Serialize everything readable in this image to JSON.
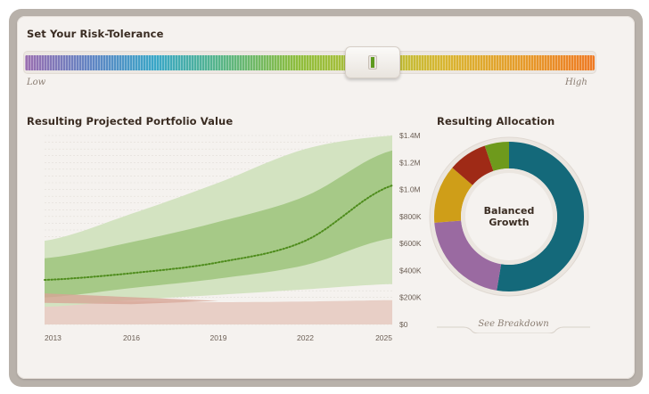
{
  "risk": {
    "title": "Set Your Risk-Tolerance",
    "low_label": "Low",
    "high_label": "High",
    "slider_value_fraction": 0.61
  },
  "projection": {
    "title": "Resulting Projected Portfolio Value"
  },
  "allocation": {
    "title": "Resulting Allocation",
    "center_line1": "Balanced",
    "center_line2": "Growth",
    "breakdown_link": "See Breakdown"
  },
  "chart_data": [
    {
      "type": "area",
      "title": "Resulting Projected Portfolio Value",
      "x_ticks": [
        "2013",
        "2016",
        "2019",
        "2022",
        "2025"
      ],
      "y_ticks": [
        "$0",
        "$200K",
        "$400K",
        "$600K",
        "$800K",
        "$1.0M",
        "$1.2M",
        "$1.4M"
      ],
      "xlim": [
        2013,
        2025
      ],
      "ylim": [
        0,
        1400000
      ],
      "grid": true,
      "series": [
        {
          "x": [
            2013,
            2016,
            2019,
            2022,
            2025
          ],
          "y": [
            330000,
            380000,
            460000,
            620000,
            1030000
          ]
        },
        {
          "x": [
            2013,
            2016,
            2019,
            2022,
            2025
          ],
          "lower": [
            200000,
            270000,
            340000,
            440000,
            640000
          ],
          "upper": [
            490000,
            610000,
            760000,
            950000,
            1290000
          ]
        },
        {
          "x": [
            2013,
            2016,
            2019,
            2022,
            2025
          ],
          "lower": [
            130000,
            180000,
            220000,
            260000,
            300000
          ],
          "upper": [
            620000,
            820000,
            1050000,
            1300000,
            1400000
          ]
        },
        {
          "x": [
            2013,
            2016,
            2019,
            2022,
            2025
          ],
          "lower": [
            0,
            0,
            0,
            0,
            0
          ],
          "upper": [
            180000,
            170000,
            165000,
            170000,
            180000
          ]
        }
      ],
      "colors": {
        "median": "#4e8c1c",
        "inner_band": "#a6c987",
        "outer_band": "#d3e3c1",
        "loss_band": "#e8cfc6"
      }
    },
    {
      "type": "pie",
      "title": "Resulting Allocation",
      "values": [
        50,
        20,
        12,
        8,
        5
      ],
      "colors": [
        "#14697a",
        "#9a6aa1",
        "#cf9e18",
        "#9f2a16",
        "#6e9a1c"
      ]
    }
  ]
}
